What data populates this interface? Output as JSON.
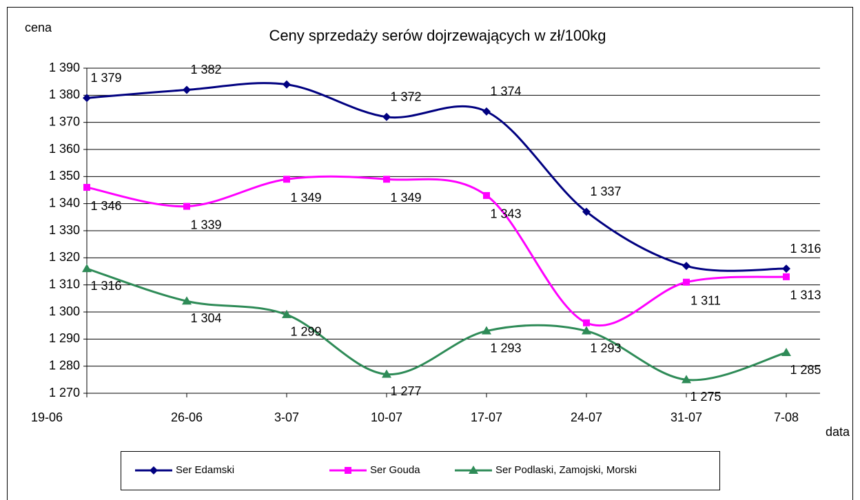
{
  "chart_data": {
    "type": "line",
    "title": "Ceny sprzedaży serów dojrzewających w zł/100kg",
    "y_label": "cena",
    "x_label": "data",
    "categories": [
      "19-06",
      "26-06",
      "3-07",
      "10-07",
      "17-07",
      "24-07",
      "31-07",
      "7-08"
    ],
    "ylim": [
      1270,
      1390
    ],
    "yticks": [
      {
        "value": 1270,
        "label": "1 270"
      },
      {
        "value": 1280,
        "label": "1 280"
      },
      {
        "value": 1290,
        "label": "1 290"
      },
      {
        "value": 1300,
        "label": "1 300"
      },
      {
        "value": 1310,
        "label": "1 310"
      },
      {
        "value": 1320,
        "label": "1 320"
      },
      {
        "value": 1330,
        "label": "1 330"
      },
      {
        "value": 1340,
        "label": "1 340"
      },
      {
        "value": 1350,
        "label": "1 350"
      },
      {
        "value": 1360,
        "label": "1 360"
      },
      {
        "value": 1370,
        "label": "1 370"
      },
      {
        "value": 1380,
        "label": "1 380"
      },
      {
        "value": 1390,
        "label": "1 390"
      }
    ],
    "grid": true,
    "smooth": true,
    "legend": "bottom",
    "series": [
      {
        "name": "Ser Edamski",
        "color": "#000080",
        "marker": "diamond",
        "values": [
          1379,
          1382,
          1384,
          1372,
          1374,
          1337,
          1317,
          1316
        ],
        "value_labels": [
          "1 379",
          "1 382",
          null,
          "1 372",
          "1 374",
          "1 337",
          null,
          "1 316"
        ]
      },
      {
        "name": "Ser Gouda",
        "color": "#ff00ff",
        "marker": "square",
        "values": [
          1346,
          1339,
          1349,
          1349,
          1343,
          1296,
          1311,
          1313
        ],
        "value_labels": [
          "1 346",
          "1 339",
          "1 349",
          "1 349",
          "1 343",
          null,
          "1 311",
          "1 313"
        ]
      },
      {
        "name": "Ser Podlaski, Zamojski, Morski",
        "color": "#2e8b57",
        "marker": "triangle",
        "values": [
          1316,
          1304,
          1299,
          1277,
          1293,
          1293,
          1275,
          1285
        ],
        "value_labels": [
          "1 316",
          "1 304",
          "1 299",
          "1 277",
          "1 293",
          "1 293",
          "1 275",
          "1 285"
        ]
      }
    ]
  }
}
